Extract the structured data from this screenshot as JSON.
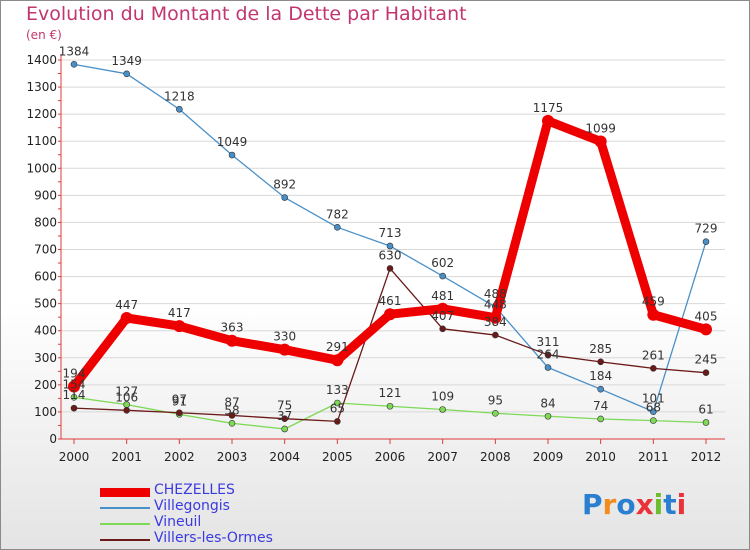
{
  "title": "Evolution du Montant de la Dette par Habitant",
  "unit": "(en €)",
  "logo": {
    "text": "Proxiti",
    "letter_colors": [
      "#2b7fd1",
      "#f28c1e",
      "#2b7fd1",
      "#e8333a",
      "#6dbd2e",
      "#2b7fd1",
      "#e8333a"
    ]
  },
  "colors": {
    "axis": "#e03a3a",
    "grid": "#d8d8d8"
  },
  "chart_data": {
    "type": "line",
    "title": "Evolution du Montant de la Dette par Habitant",
    "ylabel": "(en €)",
    "xlabel": "",
    "x": [
      "2000",
      "2001",
      "2002",
      "2003",
      "2004",
      "2005",
      "2006",
      "2007",
      "2008",
      "2009",
      "2010",
      "2011",
      "2012"
    ],
    "ylim": [
      0,
      1400
    ],
    "yticks": [
      0,
      100,
      200,
      300,
      400,
      500,
      600,
      700,
      800,
      900,
      1000,
      1100,
      1200,
      1300,
      1400
    ],
    "grid": "horizontal",
    "legend_position": "bottom-left",
    "series": [
      {
        "name": "CHEZELLES",
        "color": "#ee0000",
        "legend_text_color": "#3a3ae0",
        "width": "thick",
        "values": [
          194,
          447,
          417,
          363,
          330,
          291,
          461,
          481,
          448,
          1175,
          1099,
          459,
          405
        ],
        "labels": [
          "194",
          "447",
          "417",
          "363",
          "330",
          "291",
          "461",
          "481",
          "448",
          "1175",
          "1099",
          "459",
          "405"
        ]
      },
      {
        "name": "Villegongis",
        "color": "#4a90c8",
        "legend_text_color": "#3a3ae0",
        "width": "thin",
        "values": [
          1384,
          1349,
          1218,
          1049,
          892,
          782,
          713,
          602,
          488,
          264,
          184,
          101,
          729
        ],
        "labels": [
          "1384",
          "1349",
          "1218",
          "1049",
          "892",
          "782",
          "713",
          "602",
          "488",
          "264",
          "184",
          "101",
          "729"
        ]
      },
      {
        "name": "Vineuil",
        "color": "#7ed957",
        "legend_text_color": "#3a3ae0",
        "width": "thin",
        "values": [
          154,
          127,
          91,
          58,
          37,
          133,
          121,
          109,
          95,
          84,
          74,
          68,
          61
        ],
        "labels": [
          "154",
          "127",
          "91",
          "58",
          "37",
          "133",
          "121",
          "109",
          "95",
          "84",
          "74",
          "68",
          "61"
        ]
      },
      {
        "name": "Villers-les-Ormes",
        "color": "#6b1a1a",
        "legend_text_color": "#3a3ae0",
        "width": "thin",
        "values": [
          114,
          106,
          97,
          87,
          75,
          65,
          630,
          407,
          384,
          311,
          285,
          261,
          245
        ],
        "labels": [
          "114",
          "106",
          "97",
          "87",
          "75",
          "65",
          "630",
          "407",
          "384",
          "311",
          "285",
          "261",
          "245"
        ]
      }
    ]
  }
}
